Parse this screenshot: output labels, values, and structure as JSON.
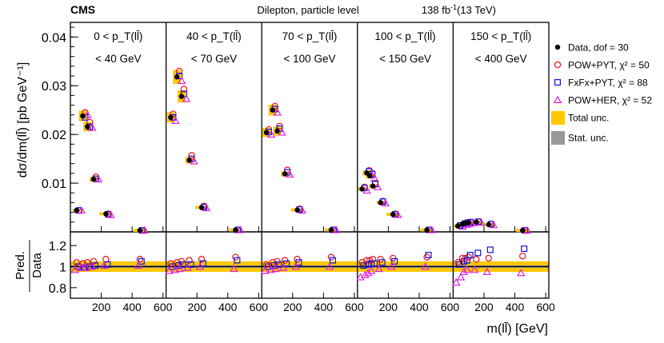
{
  "chart_data": {
    "type": "scatter",
    "experiment": "CMS",
    "title": "Dilepton, particle level",
    "lumi": "138 fb",
    "lumi_exp": "-1",
    "energy": "(13 TeV)",
    "ylabel": "dσ/dm(ll̄) [pb GeV⁻¹]",
    "ratio_ylabel_top": "Pred.",
    "ratio_ylabel_bottom": "Data",
    "xlabel": "m(ll̄) [GeV]",
    "ylim": [
      0,
      0.043
    ],
    "ratio_ylim": [
      0.7,
      1.33
    ],
    "ytick_labels": [
      "0.01",
      "0.02",
      "0.03",
      "0.04"
    ],
    "yticks": [
      0.01,
      0.02,
      0.03,
      0.04
    ],
    "ratio_ytick_labels": [
      "0.8",
      "1",
      "1.2"
    ],
    "ratio_yticks": [
      0.8,
      1.0,
      1.2
    ],
    "xlim": [
      0,
      620
    ],
    "xticks": [
      200,
      400,
      600
    ],
    "xtick_labels": [
      "200",
      "400",
      "600"
    ],
    "legend": [
      {
        "label": "Data, dof = 30",
        "marker": "dot"
      },
      {
        "label": "POW+PYT, χ² = 50",
        "marker": "circle"
      },
      {
        "label": "FxFx+PYT, χ² = 88",
        "marker": "square"
      },
      {
        "label": "POW+HER, χ² = 52",
        "marker": "triangle"
      },
      {
        "label": "Total unc.",
        "marker": "box-total"
      },
      {
        "label": "Stat. unc.",
        "marker": "box-stat"
      }
    ],
    "colors": {
      "data": "#000000",
      "pow_pyt": "#e8141e",
      "fxfx_pyt": "#1414dc",
      "pow_her": "#e020e0",
      "total_unc": "#ffc800",
      "stat_unc": "#999999"
    },
    "panels": [
      {
        "label_top": "0 < p_T(ll̄)",
        "label_bottom": "< 40 GeV",
        "x": [
          40,
          80,
          110,
          150,
          230,
          450
        ],
        "data": [
          0.0044,
          0.0238,
          0.0216,
          0.0108,
          0.0037,
          0.0003
        ],
        "pow_pyt": [
          0.0044,
          0.0245,
          0.0225,
          0.0113,
          0.0037,
          0.0003
        ],
        "fxfx_pyt": [
          0.0044,
          0.0235,
          0.0216,
          0.0109,
          0.0036,
          0.0003
        ],
        "pow_her": [
          0.0044,
          0.024,
          0.0214,
          0.0108,
          0.0035,
          0.0003
        ],
        "r_pow_pyt": [
          1.04,
          1.03,
          1.04,
          1.05,
          1.07,
          1.07
        ],
        "r_fxfx_pyt": [
          1.0,
          0.99,
          1.0,
          1.01,
          1.02,
          1.05
        ],
        "r_pow_her": [
          0.97,
          0.99,
          0.99,
          1.0,
          1.01,
          1.01
        ]
      },
      {
        "label_top": "40 < p_T(ll̄)",
        "label_bottom": "< 70 GeV",
        "x": [
          30,
          70,
          100,
          150,
          230,
          450
        ],
        "data": [
          0.0235,
          0.0318,
          0.0278,
          0.0147,
          0.005,
          0.0004
        ],
        "pow_pyt": [
          0.0242,
          0.033,
          0.0293,
          0.0157,
          0.0053,
          0.0004
        ],
        "fxfx_pyt": [
          0.0235,
          0.032,
          0.0283,
          0.015,
          0.0051,
          0.0004
        ],
        "pow_her": [
          0.0228,
          0.031,
          0.0273,
          0.0145,
          0.0049,
          0.0004
        ],
        "r_pow_pyt": [
          1.03,
          1.04,
          1.05,
          1.06,
          1.07,
          1.09
        ],
        "r_fxfx_pyt": [
          1.0,
          1.01,
          1.02,
          1.02,
          1.03,
          1.06
        ],
        "r_pow_her": [
          0.96,
          0.97,
          0.98,
          0.99,
          1.0,
          0.98
        ]
      },
      {
        "label_top": "70 < p_T(ll̄)",
        "label_bottom": "< 100 GeV",
        "x": [
          30,
          70,
          100,
          150,
          230,
          450
        ],
        "data": [
          0.0204,
          0.025,
          0.0207,
          0.0119,
          0.0045,
          0.0004
        ],
        "pow_pyt": [
          0.021,
          0.0258,
          0.0217,
          0.0127,
          0.0047,
          0.0004
        ],
        "fxfx_pyt": [
          0.0205,
          0.0252,
          0.0212,
          0.0122,
          0.0046,
          0.0004
        ],
        "pow_her": [
          0.02,
          0.0245,
          0.0204,
          0.0118,
          0.0044,
          0.0004
        ],
        "r_pow_pyt": [
          1.02,
          1.04,
          1.05,
          1.06,
          1.07,
          1.09
        ],
        "r_fxfx_pyt": [
          1.0,
          1.01,
          1.02,
          1.03,
          1.04,
          1.06
        ],
        "r_pow_her": [
          0.96,
          0.97,
          0.98,
          0.99,
          1.0,
          1.0
        ]
      },
      {
        "label_top": "100 < p_T(ll̄)",
        "label_bottom": "< 150 GeV",
        "x": [
          30,
          60,
          80,
          100,
          150,
          230,
          450
        ],
        "data": [
          0.0088,
          0.0121,
          0.0115,
          0.0094,
          0.006,
          0.0036,
          0.0004
        ],
        "pow_pyt": [
          0.0092,
          0.0126,
          0.012,
          0.01,
          0.0063,
          0.0037,
          0.0004
        ],
        "fxfx_pyt": [
          0.009,
          0.0124,
          0.0119,
          0.0098,
          0.0062,
          0.0036,
          0.0004
        ],
        "pow_her": [
          0.0085,
          0.0117,
          0.011,
          0.0092,
          0.0059,
          0.0035,
          0.0004
        ],
        "r_pow_pyt": [
          1.04,
          1.06,
          1.06,
          1.07,
          1.07,
          1.08,
          1.09
        ],
        "r_fxfx_pyt": [
          1.01,
          1.02,
          1.03,
          1.03,
          1.04,
          1.05,
          1.11
        ],
        "r_pow_her": [
          0.9,
          0.92,
          0.94,
          0.96,
          0.98,
          1.0,
          1.0
        ]
      },
      {
        "label_top": "150 < p_T(ll̄)",
        "label_bottom": "< 400 GeV",
        "x": [
          30,
          60,
          80,
          100,
          150,
          230,
          450
        ],
        "data": [
          0.0012,
          0.0016,
          0.0018,
          0.0019,
          0.002,
          0.0015,
          0.0003
        ],
        "pow_pyt": [
          0.0013,
          0.0017,
          0.0019,
          0.002,
          0.0021,
          0.0016,
          0.0003
        ],
        "fxfx_pyt": [
          0.0013,
          0.0017,
          0.0019,
          0.002,
          0.0021,
          0.0016,
          0.0003
        ],
        "pow_her": [
          0.0011,
          0.0015,
          0.0017,
          0.0018,
          0.0019,
          0.0014,
          0.0003
        ],
        "r_pow_pyt": [
          1.04,
          1.08,
          1.08,
          1.09,
          1.07,
          1.08,
          1.1
        ],
        "r_fxfx_pyt": [
          1.02,
          1.05,
          1.06,
          1.11,
          1.13,
          1.16,
          1.17
        ],
        "r_pow_her": [
          0.85,
          0.9,
          0.95,
          0.97,
          0.97,
          0.95,
          0.94
        ]
      }
    ]
  }
}
